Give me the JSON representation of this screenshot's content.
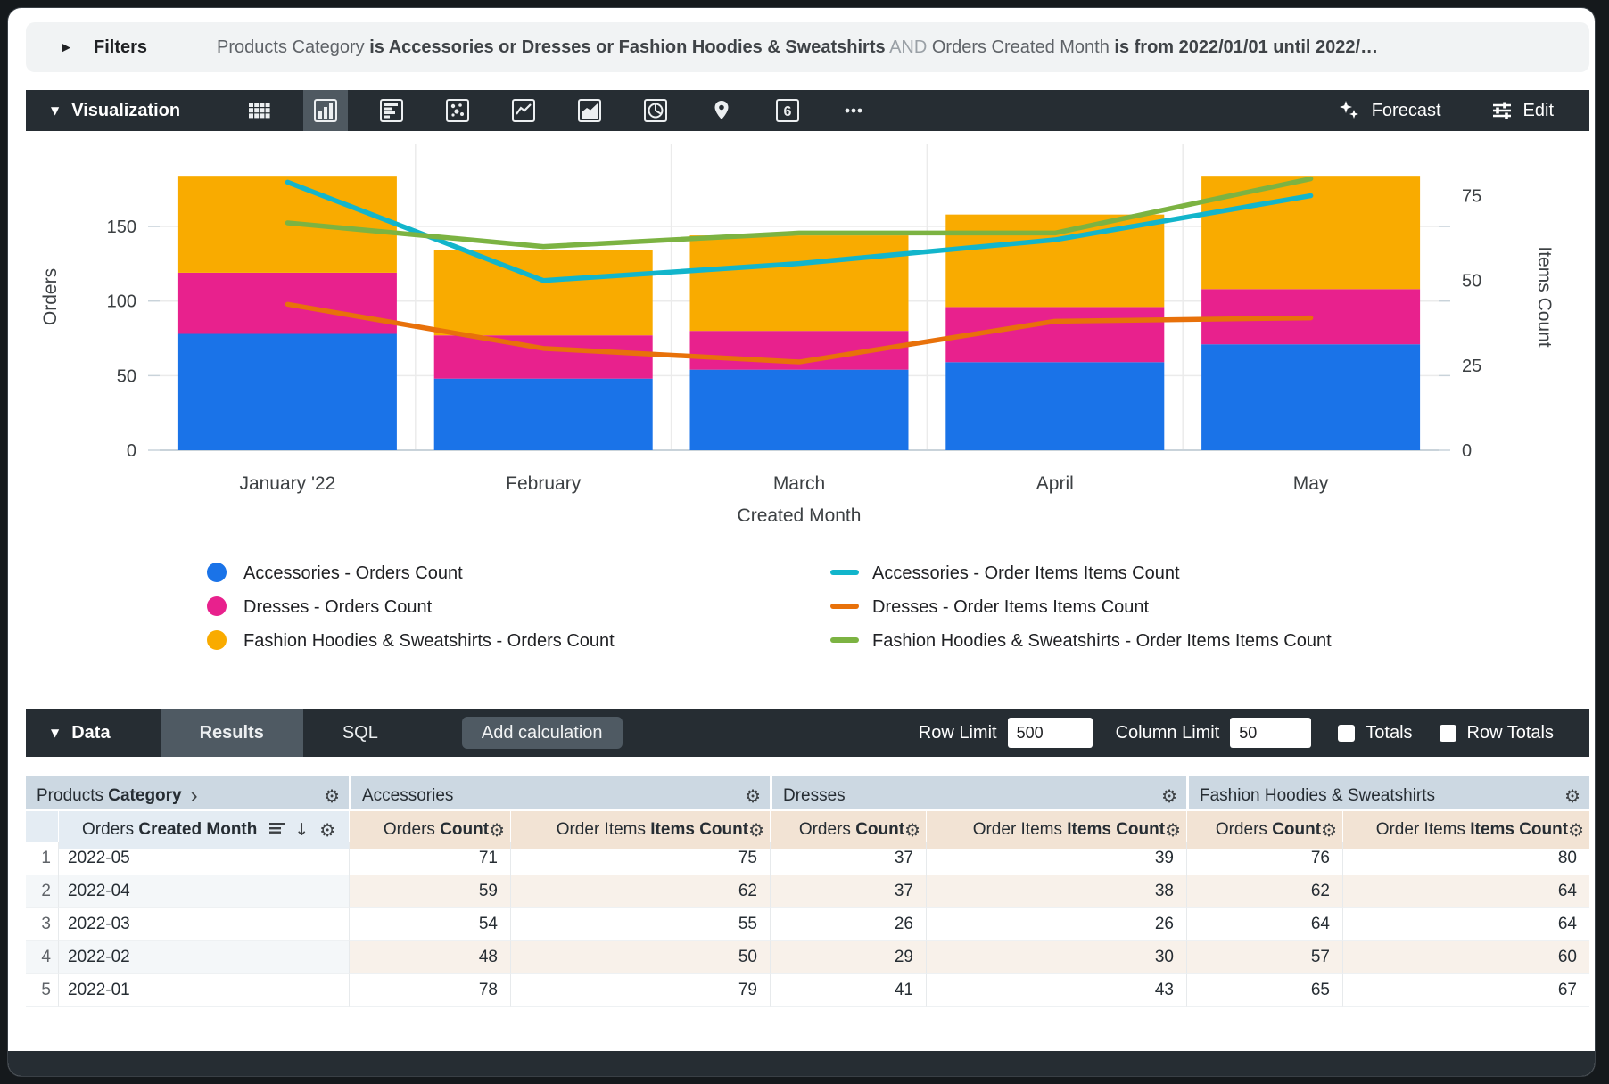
{
  "filters_bar": {
    "label": "Filters",
    "segments": [
      {
        "text": "Products Category ",
        "style": "plain"
      },
      {
        "text": "is Accessories or Dresses or Fashion Hoodies & Sweatshirts",
        "style": "bold"
      },
      {
        "text": " AND ",
        "style": "and"
      },
      {
        "text": "Orders Created Month ",
        "style": "plain"
      },
      {
        "text": "is from 2022/01/01 until 2022/…",
        "style": "bold"
      }
    ]
  },
  "viz_toolbar": {
    "label": "Visualization",
    "icons": [
      {
        "name": "table",
        "selected": false
      },
      {
        "name": "column",
        "selected": true
      },
      {
        "name": "bar",
        "selected": false
      },
      {
        "name": "scatter",
        "selected": false
      },
      {
        "name": "line",
        "selected": false
      },
      {
        "name": "area",
        "selected": false
      },
      {
        "name": "pie",
        "selected": false
      },
      {
        "name": "map",
        "selected": false
      },
      {
        "name": "single-value",
        "selected": false
      },
      {
        "name": "more",
        "selected": false
      }
    ],
    "single_value_glyph": "6",
    "forecast_label": "Forecast",
    "edit_label": "Edit"
  },
  "chart_data": {
    "type": "combo: stacked column + line, dual y-axis",
    "categories": [
      "January '22",
      "February",
      "March",
      "April",
      "May"
    ],
    "x_axis_title": "Created Month",
    "left_axis": {
      "title": "Orders",
      "ticks": [
        0,
        50,
        100,
        150
      ]
    },
    "right_axis": {
      "title": "Items Count",
      "ticks": [
        0,
        25,
        50,
        75
      ]
    },
    "bar_series": [
      {
        "name": "Accessories - Orders Count",
        "color": "#1A73E8",
        "values": [
          78,
          48,
          54,
          59,
          71
        ]
      },
      {
        "name": "Dresses - Orders Count",
        "color": "#E8218D",
        "values": [
          41,
          29,
          26,
          37,
          37
        ]
      },
      {
        "name": "Fashion Hoodies & Sweatshirts - Orders Count",
        "color": "#F9AB00",
        "values": [
          65,
          57,
          64,
          62,
          76
        ]
      }
    ],
    "line_series": [
      {
        "name": "Accessories - Order Items Items Count",
        "color": "#12B5CB",
        "values": [
          79,
          50,
          55,
          62,
          75
        ]
      },
      {
        "name": "Dresses - Order Items Items Count",
        "color": "#E8710A",
        "values": [
          43,
          30,
          26,
          38,
          39
        ]
      },
      {
        "name": "Fashion Hoodies & Sweatshirts - Order Items Items Count",
        "color": "#7CB342",
        "values": [
          67,
          60,
          64,
          64,
          80
        ]
      }
    ],
    "grid": true,
    "legend_position": "bottom, two columns"
  },
  "data_bar": {
    "label": "Data",
    "tabs": [
      {
        "label": "Results",
        "active": true
      },
      {
        "label": "SQL",
        "active": false
      }
    ],
    "add_calculation_label": "Add calculation",
    "row_limit_label": "Row Limit",
    "row_limit_value": "500",
    "column_limit_label": "Column Limit",
    "column_limit_value": "50",
    "totals_label": "Totals",
    "totals_checked": false,
    "row_totals_label": "Row Totals",
    "row_totals_checked": false
  },
  "table": {
    "group_headers": [
      {
        "plain": "Products ",
        "bold": "Category",
        "chevron": "›"
      },
      {
        "plain": "Accessories",
        "bold": ""
      },
      {
        "plain": "Dresses",
        "bold": ""
      },
      {
        "plain": "Fashion Hoodies & Sweatshirts",
        "bold": ""
      }
    ],
    "sub_headers": {
      "dimension": {
        "plain": "Orders ",
        "bold": "Created Month"
      },
      "measures": [
        {
          "plain": "Orders ",
          "bold": "Count"
        },
        {
          "plain": "Order Items ",
          "bold": "Items Count"
        },
        {
          "plain": "Orders ",
          "bold": "Count"
        },
        {
          "plain": "Order Items ",
          "bold": "Items Count"
        },
        {
          "plain": "Orders ",
          "bold": "Count"
        },
        {
          "plain": "Order Items ",
          "bold": "Items Count"
        }
      ]
    },
    "rows": [
      {
        "n": "1",
        "month": "2022-05",
        "values": [
          "71",
          "75",
          "37",
          "39",
          "76",
          "80"
        ]
      },
      {
        "n": "2",
        "month": "2022-04",
        "values": [
          "59",
          "62",
          "37",
          "38",
          "62",
          "64"
        ]
      },
      {
        "n": "3",
        "month": "2022-03",
        "values": [
          "54",
          "55",
          "26",
          "26",
          "64",
          "64"
        ]
      },
      {
        "n": "4",
        "month": "2022-02",
        "values": [
          "48",
          "50",
          "29",
          "30",
          "57",
          "60"
        ]
      },
      {
        "n": "5",
        "month": "2022-01",
        "values": [
          "78",
          "79",
          "41",
          "43",
          "65",
          "67"
        ]
      }
    ]
  }
}
